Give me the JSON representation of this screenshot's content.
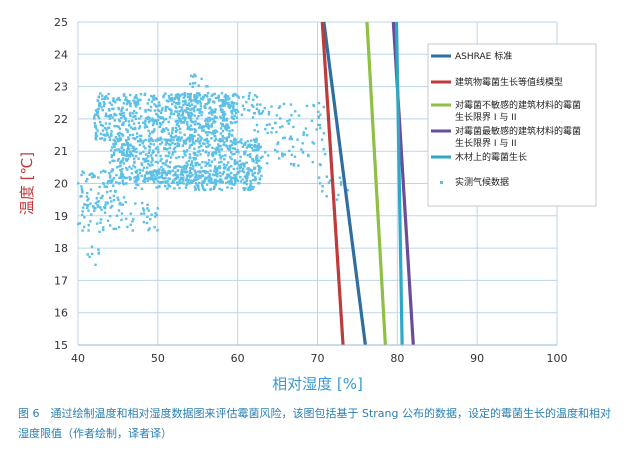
{
  "chart_data": {
    "type": "scatter",
    "xlabel": "相对湿度 [%]",
    "ylabel": "温度 [℃]",
    "xlim": [
      40,
      100
    ],
    "ylim": [
      15,
      25
    ],
    "xticks": [
      "40",
      "50",
      "60",
      "70",
      "80",
      "90",
      "100"
    ],
    "yticks": [
      "15",
      "16",
      "17",
      "18",
      "19",
      "20",
      "21",
      "22",
      "23",
      "24",
      "25"
    ],
    "grid": true,
    "legend_position": "right",
    "series": [
      {
        "name": "ASHRAE 标准",
        "type": "line",
        "color": "#2f6e9e",
        "points": [
          [
            70.8,
            25
          ],
          [
            76.0,
            15
          ]
        ]
      },
      {
        "name": "建筑物霉菌生长等值线模型",
        "type": "line",
        "color": "#c0393b",
        "points": [
          [
            70.6,
            25
          ],
          [
            73.2,
            15
          ]
        ]
      },
      {
        "name": "对霉菌不敏感的建筑材料的霉菌生长限界 I 与 II",
        "type": "line",
        "color": "#8fbf45",
        "points": [
          [
            76.2,
            25
          ],
          [
            78.5,
            15
          ]
        ]
      },
      {
        "name": "对霉菌最敏感的建筑材料的霉菌生长限界 I 与 II",
        "type": "line",
        "color": "#6a4c9c",
        "points": [
          [
            79.5,
            25
          ],
          [
            82.0,
            15
          ]
        ]
      },
      {
        "name": "木材上的霉菌生长",
        "type": "line",
        "color": "#2fa8c4",
        "points": [
          [
            79.9,
            25
          ],
          [
            80.6,
            15
          ]
        ]
      },
      {
        "name": "实测气候数据",
        "type": "scatter",
        "color": "#5cc0e6",
        "clusters": [
          {
            "x": [
              42,
              60
            ],
            "y": [
              21.3,
              22.8
            ],
            "n": 650
          },
          {
            "x": [
              44,
              63
            ],
            "y": [
              20.0,
              21.4
            ],
            "n": 650
          },
          {
            "x": [
              47,
              62
            ],
            "y": [
              19.8,
              20.4
            ],
            "n": 200
          },
          {
            "x": [
              52,
              63
            ],
            "y": [
              22.0,
              22.8
            ],
            "n": 120
          },
          {
            "x": [
              40,
              46
            ],
            "y": [
              19.2,
              20.4
            ],
            "n": 90
          },
          {
            "x": [
              40,
              50
            ],
            "y": [
              18.5,
              19.4
            ],
            "n": 70
          },
          {
            "x": [
              62,
              71
            ],
            "y": [
              20.5,
              22.5
            ],
            "n": 100
          },
          {
            "x": [
              70,
              74
            ],
            "y": [
              19.5,
              20.3
            ],
            "n": 14
          },
          {
            "x": [
              41,
              43
            ],
            "y": [
              17.4,
              18.2
            ],
            "n": 8
          },
          {
            "x": [
              54,
              57
            ],
            "y": [
              22.9,
              23.4
            ],
            "n": 12
          }
        ]
      }
    ]
  },
  "caption": "图 6　通过绘制温度和相对湿度数据图来评估霉菌风险，该图包括基于 Strang 公布的数据，设定的霉菌生长的温度和相对湿度限值（作者绘制，译者译）",
  "colors": {
    "xlabel": "#3a9ad4",
    "ylabel": "#c0393b",
    "caption": "#2a7fb0",
    "grid": "#b9d7e9"
  }
}
